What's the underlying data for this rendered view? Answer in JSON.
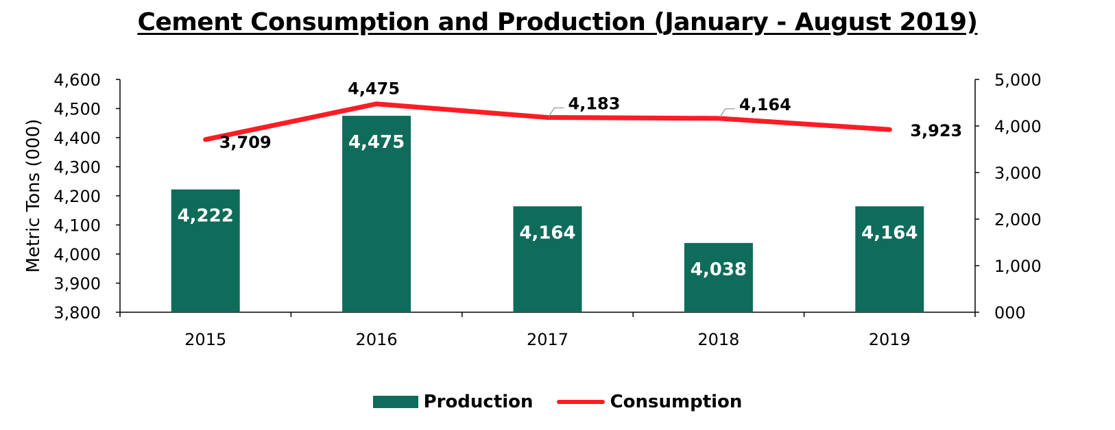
{
  "chart_data": {
    "type": "bar",
    "title": "Cement Consumption and Production (January -  August 2019)",
    "ylabel": "Metric Tons (000)",
    "categories": [
      "2015",
      "2016",
      "2017",
      "2018",
      "2019"
    ],
    "ylim": [
      3800,
      4600
    ],
    "yticks": [
      "3,800",
      "3,900",
      "4,000",
      "4,100",
      "4,200",
      "4,300",
      "4,400",
      "4,500",
      "4,600"
    ],
    "y2lim": [
      0,
      5000
    ],
    "y2ticks": [
      "000",
      "1,000",
      "2,000",
      "3,000",
      "4,000",
      "5,000"
    ],
    "grid": false,
    "legend_position": "bottom",
    "series": [
      {
        "name": "Production",
        "type": "bar",
        "axis": "left",
        "color": "#0f6b5a",
        "values": [
          4222,
          4475,
          4164,
          4038,
          4164
        ],
        "labels": [
          "4,222",
          "4,475",
          "4,164",
          "4,038",
          "4,164"
        ]
      },
      {
        "name": "Consumption",
        "type": "line",
        "axis": "right",
        "color": "#ff1c24",
        "values": [
          3709,
          4475,
          4183,
          4164,
          3923
        ],
        "labels": [
          "3,709",
          "4,475",
          "4,183",
          "4,164",
          "3,923"
        ]
      }
    ]
  }
}
